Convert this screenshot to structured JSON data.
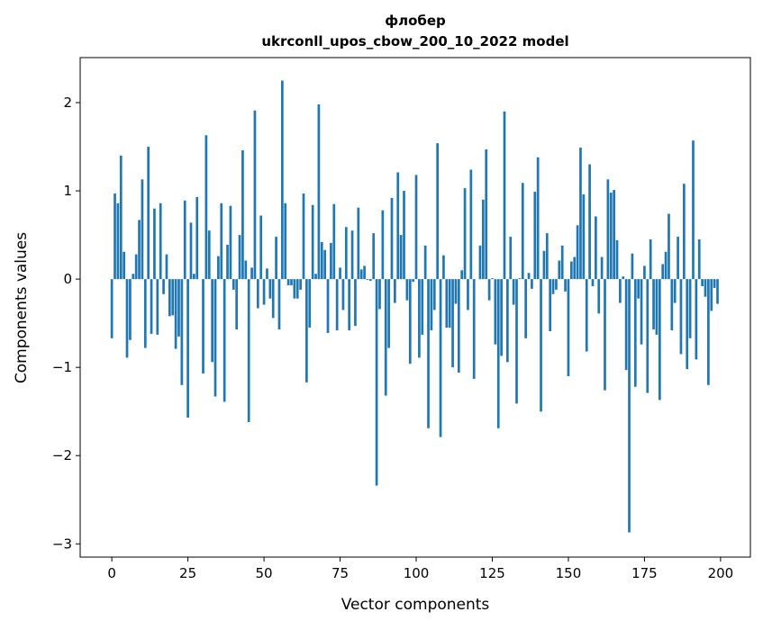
{
  "chart_data": {
    "type": "bar",
    "title": "флобер",
    "subtitle": "ukrconll_upos_cbow_200_10_2022 model",
    "xlabel": "Vector components",
    "ylabel": "Components values",
    "xlim": [
      -10.4,
      209.8
    ],
    "ylim": [
      -3.15,
      2.51
    ],
    "xticks": [
      0,
      25,
      50,
      75,
      100,
      125,
      150,
      175,
      200
    ],
    "xtick_labels": [
      "0",
      "25",
      "50",
      "75",
      "100",
      "125",
      "150",
      "175",
      "200"
    ],
    "yticks": [
      -3,
      -2,
      -1,
      0,
      1,
      2
    ],
    "ytick_labels": [
      "−3",
      "−2",
      "−1",
      "0",
      "1",
      "2"
    ],
    "grid": false,
    "bar_color": "#1f77b4",
    "values": [
      -0.67,
      0.97,
      0.86,
      1.4,
      0.31,
      -0.89,
      -0.69,
      0.06,
      0.28,
      0.67,
      1.13,
      -0.78,
      1.5,
      -0.62,
      0.8,
      -0.63,
      0.86,
      -0.17,
      0.28,
      -0.42,
      -0.41,
      -0.79,
      -0.65,
      -1.2,
      0.89,
      -1.57,
      0.64,
      0.06,
      0.93,
      0.0,
      -1.07,
      1.63,
      0.55,
      -0.94,
      -1.33,
      0.26,
      0.86,
      -1.39,
      0.39,
      0.83,
      -0.12,
      -0.57,
      0.5,
      1.46,
      0.21,
      -1.62,
      0.13,
      1.91,
      -0.33,
      0.72,
      -0.29,
      0.12,
      -0.22,
      -0.44,
      0.48,
      -0.57,
      2.25,
      0.86,
      -0.07,
      -0.07,
      -0.22,
      -0.22,
      -0.12,
      0.97,
      -1.17,
      -0.55,
      0.84,
      0.06,
      1.98,
      0.42,
      0.33,
      -0.61,
      0.41,
      0.85,
      -0.58,
      0.13,
      -0.35,
      0.59,
      -0.58,
      0.55,
      -0.53,
      0.81,
      0.11,
      0.15,
      -0.01,
      -0.02,
      0.52,
      -2.34,
      -0.34,
      0.78,
      -1.32,
      -0.78,
      0.92,
      -0.27,
      1.21,
      0.5,
      1.0,
      -0.24,
      -0.96,
      -0.03,
      1.18,
      -0.89,
      -0.63,
      0.38,
      -1.69,
      -0.58,
      -0.35,
      1.54,
      -1.79,
      0.27,
      -0.55,
      -0.55,
      -1.0,
      -0.28,
      -1.06,
      0.1,
      1.03,
      -0.35,
      1.24,
      -1.13,
      0.0,
      0.38,
      0.9,
      1.47,
      -0.24,
      0.01,
      -0.74,
      -1.69,
      -0.87,
      1.9,
      -0.94,
      0.48,
      -0.29,
      -1.41,
      0.01,
      1.09,
      -0.67,
      0.07,
      -0.11,
      0.99,
      1.38,
      -1.5,
      0.32,
      0.52,
      -0.59,
      -0.17,
      -0.12,
      0.21,
      0.38,
      -0.14,
      -1.1,
      0.2,
      0.25,
      0.61,
      1.49,
      0.96,
      -0.82,
      1.3,
      -0.08,
      0.71,
      -0.39,
      0.25,
      -1.26,
      1.13,
      0.98,
      1.01,
      0.44,
      -0.27,
      0.03,
      -1.03,
      -2.87,
      0.29,
      -1.22,
      -0.22,
      -0.74,
      0.15,
      -1.29,
      0.45,
      -0.57,
      -0.63,
      -1.37,
      0.17,
      0.31,
      0.74,
      -0.58,
      -0.27,
      0.48,
      -0.85,
      1.08,
      -1.02,
      -0.67,
      1.57,
      -0.91,
      0.45,
      -0.08,
      -0.2,
      -1.2,
      -0.36,
      -0.1,
      -0.28
    ]
  }
}
